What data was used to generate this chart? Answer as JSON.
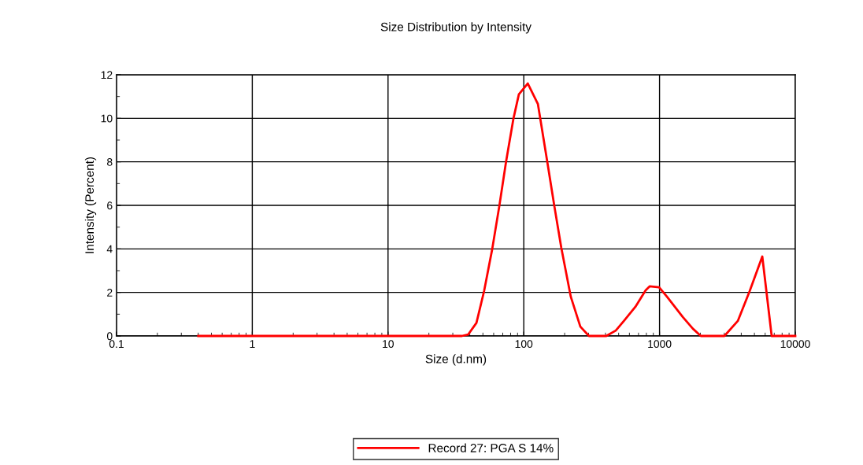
{
  "chart_data": {
    "type": "line",
    "title": "Size Distribution by Intensity",
    "xlabel": "Size (d.nm)",
    "ylabel": "Intensity (Percent)",
    "log": "x",
    "xlim": [
      0.1,
      10000
    ],
    "xticks": [
      0.1,
      1,
      10,
      100,
      1000,
      10000
    ],
    "ylim": [
      0,
      12
    ],
    "yticks": [
      0,
      2,
      4,
      6,
      8,
      10,
      12
    ],
    "grid": true,
    "legend": "bottom",
    "marker": "none",
    "line_style": "solid",
    "series": [
      {
        "name": "Record 27: PGA S 14%",
        "color": "#ff0000",
        "x": [
          0.4,
          35,
          39,
          44.8,
          51,
          58.5,
          66,
          74,
          84,
          92,
          107,
          127,
          149,
          168,
          189,
          222,
          261,
          302,
          405,
          476,
          551,
          664,
          790,
          845,
          993,
          1135,
          1483,
          1763,
          2015,
          3006,
          3773,
          4613,
          5715,
          6700,
          10000
        ],
        "values": [
          0,
          0,
          0.07,
          0.6,
          2.06,
          3.98,
          5.96,
          8.0,
          10.0,
          11.1,
          11.6,
          10.66,
          8.0,
          5.96,
          4.05,
          1.8,
          0.43,
          0,
          0,
          0.25,
          0.72,
          1.34,
          2.1,
          2.28,
          2.24,
          1.8,
          0.87,
          0.33,
          0,
          0,
          0.69,
          2.06,
          3.65,
          0,
          0
        ]
      }
    ]
  }
}
